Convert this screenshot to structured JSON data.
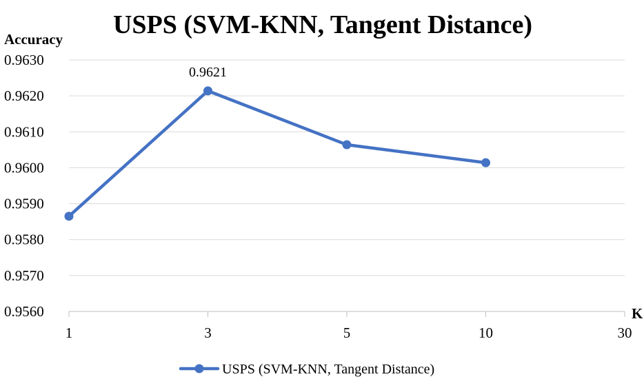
{
  "chart_data": {
    "type": "line",
    "title": "USPS (SVM-KNN, Tangent Distance)",
    "xlabel": "K",
    "ylabel": "Accuracy",
    "categories": [
      "1",
      "3",
      "5",
      "10",
      "30"
    ],
    "series": [
      {
        "name": "USPS (SVM-KNN, Tangent Distance)",
        "values": [
          0.95865,
          0.96214,
          0.96064,
          0.96014,
          null
        ],
        "color": "#4472C4"
      }
    ],
    "ylim": [
      0.956,
      0.963
    ],
    "yticks": [
      "0.9630",
      "0.9620",
      "0.9610",
      "0.9600",
      "0.9590",
      "0.9580",
      "0.9570",
      "0.9560"
    ],
    "annotations": [
      {
        "category": "3",
        "label": "0.9621"
      }
    ],
    "grid": true,
    "legend": "bottom"
  }
}
